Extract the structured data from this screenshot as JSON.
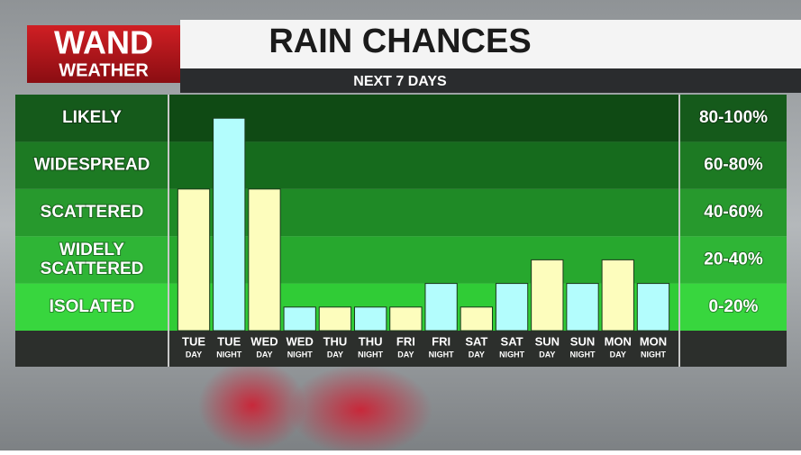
{
  "logo": {
    "line1": "WAND",
    "line2": "WEATHER"
  },
  "chart_data": {
    "type": "bar",
    "title": "RAIN CHANCES",
    "subtitle": "NEXT 7 DAYS",
    "ylim": [
      0,
      100
    ],
    "bands": [
      {
        "label": "LIKELY",
        "range": "80-100%",
        "from": 80,
        "to": 100,
        "color": "#0f4a14",
        "side_color": "#155a1b"
      },
      {
        "label": "WIDESPREAD",
        "range": "60-80%",
        "from": 60,
        "to": 80,
        "color": "#166b1d",
        "side_color": "#1d7a23"
      },
      {
        "label": "SCATTERED",
        "range": "40-60%",
        "from": 40,
        "to": 60,
        "color": "#1f8a26",
        "side_color": "#27992d"
      },
      {
        "label": "WIDELY SCATTERED",
        "range": "20-40%",
        "from": 20,
        "to": 40,
        "color": "#27a82e",
        "side_color": "#2fb536"
      },
      {
        "label": "ISOLATED",
        "range": "0-20%",
        "from": 0,
        "to": 20,
        "color": "#30cc36",
        "side_color": "#38d63e"
      }
    ],
    "categories": [
      {
        "day": "TUE",
        "period": "DAY",
        "color": "#fdfdbd"
      },
      {
        "day": "TUE",
        "period": "NIGHT",
        "color": "#b3fdfd"
      },
      {
        "day": "WED",
        "period": "DAY",
        "color": "#fdfdbd"
      },
      {
        "day": "WED",
        "period": "NIGHT",
        "color": "#b3fdfd"
      },
      {
        "day": "THU",
        "period": "DAY",
        "color": "#fdfdbd"
      },
      {
        "day": "THU",
        "period": "NIGHT",
        "color": "#b3fdfd"
      },
      {
        "day": "FRI",
        "period": "DAY",
        "color": "#fdfdbd"
      },
      {
        "day": "FRI",
        "period": "NIGHT",
        "color": "#b3fdfd"
      },
      {
        "day": "SAT",
        "period": "DAY",
        "color": "#fdfdbd"
      },
      {
        "day": "SAT",
        "period": "NIGHT",
        "color": "#b3fdfd"
      },
      {
        "day": "SUN",
        "period": "DAY",
        "color": "#fdfdbd"
      },
      {
        "day": "SUN",
        "period": "NIGHT",
        "color": "#b3fdfd"
      },
      {
        "day": "MON",
        "period": "DAY",
        "color": "#fdfdbd"
      },
      {
        "day": "MON",
        "period": "NIGHT",
        "color": "#b3fdfd"
      }
    ],
    "values": [
      60,
      90,
      60,
      10,
      10,
      10,
      10,
      20,
      10,
      20,
      30,
      20,
      30,
      20
    ]
  }
}
